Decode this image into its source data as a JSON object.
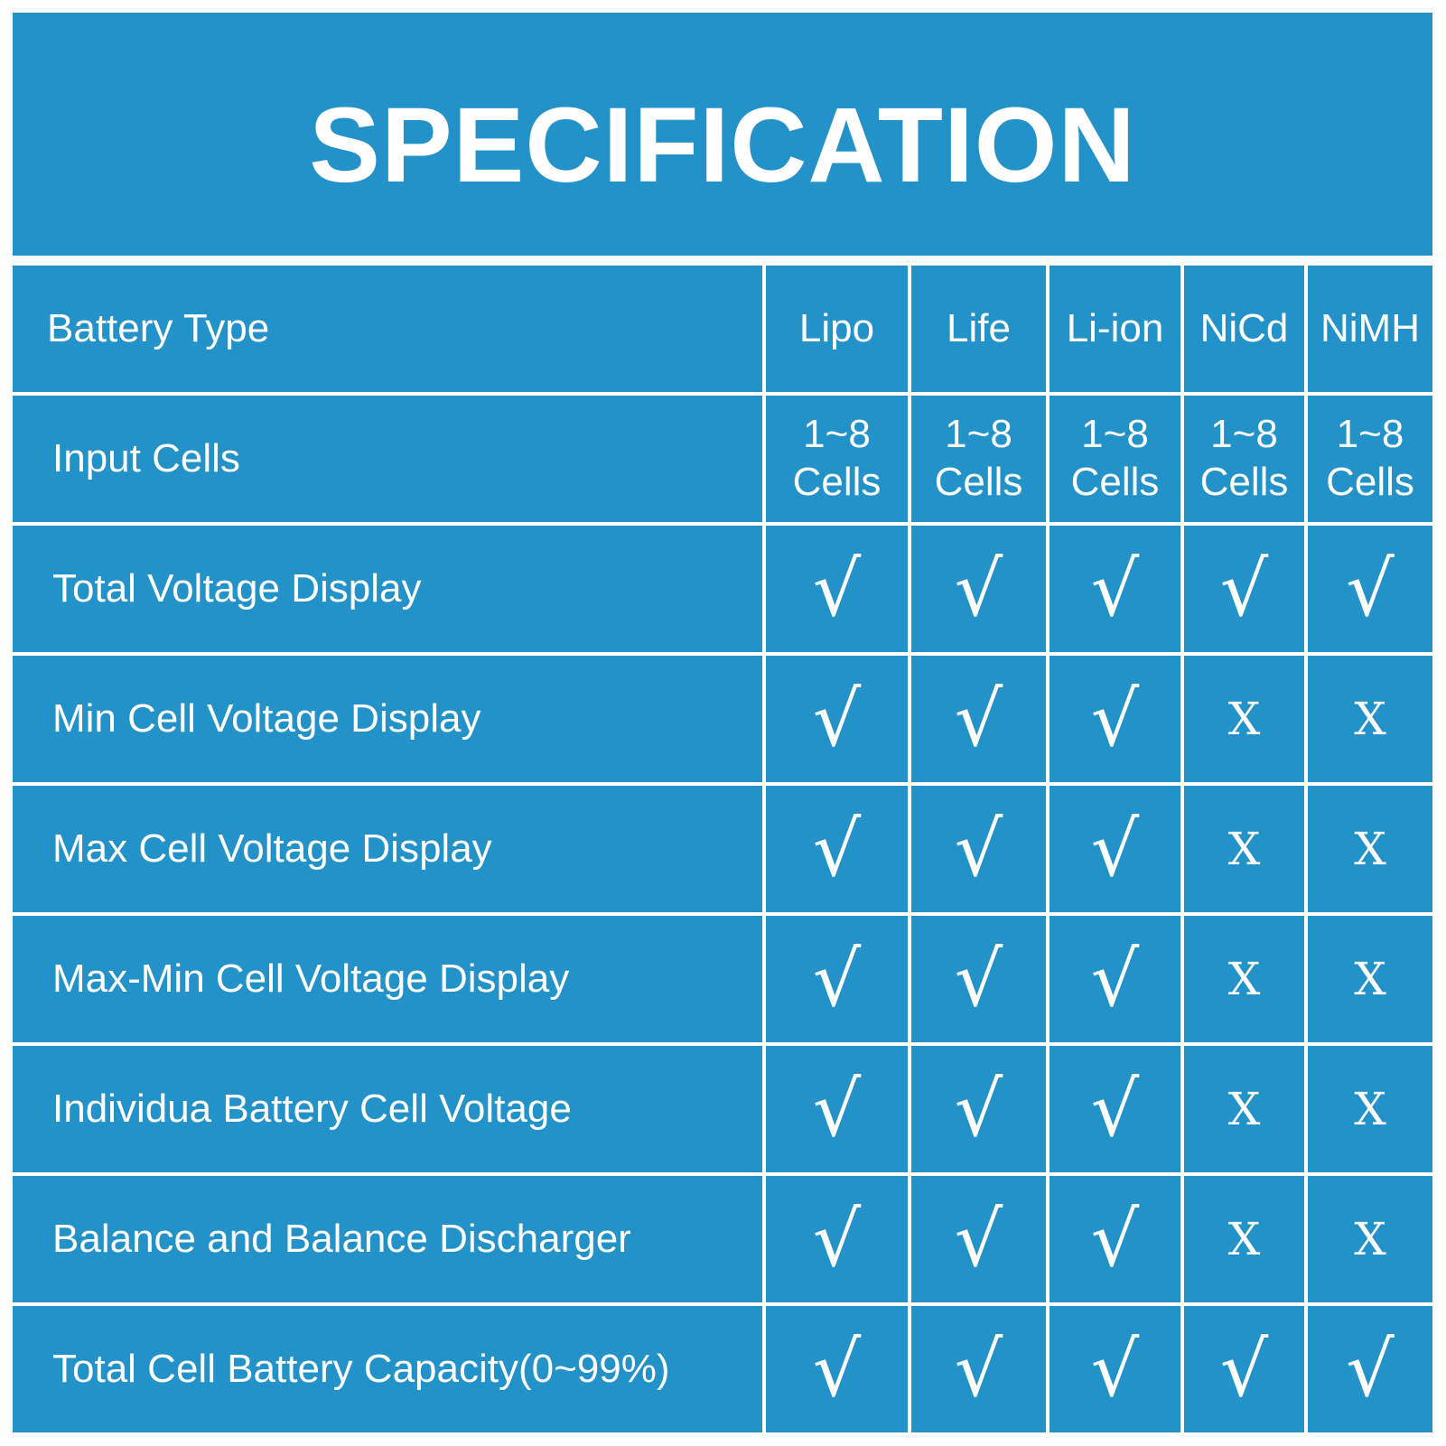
{
  "title": "SPECIFICATION",
  "colors": {
    "background": "#2292c9",
    "text": "#ffffff",
    "grid": "#ffffff"
  },
  "header": {
    "label": "Battery Type",
    "types": [
      "Lipo",
      "Life",
      "Li-ion",
      "NiCd",
      "NiMH"
    ]
  },
  "input_cells": {
    "label": "Input Cells",
    "values": [
      "1~8 Cells",
      "1~8 Cells",
      "1~8 Cells",
      "1~8 Cells",
      "1~8 Cells"
    ]
  },
  "rows": [
    {
      "label": "Total Voltage Display",
      "values": [
        "√",
        "√",
        "√",
        "√",
        "√"
      ]
    },
    {
      "label": "Min Cell Voltage Display",
      "values": [
        "√",
        "√",
        "√",
        "X",
        "X"
      ]
    },
    {
      "label": "Max Cell Voltage Display",
      "values": [
        "√",
        "√",
        "√",
        "X",
        "X"
      ]
    },
    {
      "label": "Max-Min Cell Voltage Display",
      "values": [
        "√",
        "√",
        "√",
        "X",
        "X"
      ]
    },
    {
      "label": "Individua Battery Cell Voltage",
      "values": [
        "√",
        "√",
        "√",
        "X",
        "X"
      ]
    },
    {
      "label": "Balance and Balance Discharger",
      "values": [
        "√",
        "√",
        "√",
        "X",
        "X"
      ]
    },
    {
      "label": "Total Cell Battery Capacity(0~99%)",
      "values": [
        "√",
        "√",
        "√",
        "√",
        "√"
      ]
    }
  ]
}
